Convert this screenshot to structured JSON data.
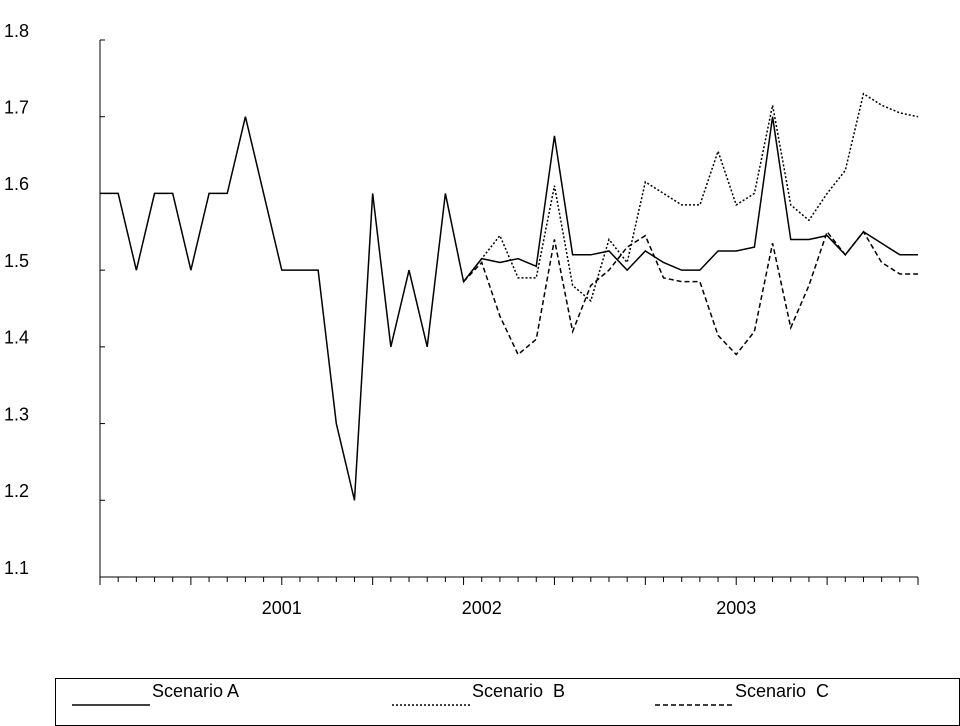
{
  "chart_data": {
    "type": "line",
    "categories": [
      null,
      null,
      null,
      null,
      null,
      null,
      null,
      null,
      null,
      null,
      "2001",
      null,
      null,
      null,
      null,
      null,
      null,
      null,
      null,
      null,
      null,
      "2002",
      null,
      null,
      null,
      null,
      null,
      null,
      null,
      null,
      null,
      null,
      null,
      null,
      null,
      "2003",
      null,
      null,
      null,
      null,
      null,
      null,
      null,
      null,
      null,
      null
    ],
    "series": [
      {
        "name": "Scenario A",
        "color": "#000000",
        "style": "solid",
        "values": [
          1.6,
          1.6,
          1.5,
          1.6,
          1.6,
          1.5,
          1.6,
          1.6,
          1.7,
          1.6,
          1.5,
          1.5,
          1.5,
          1.3,
          1.2,
          1.6,
          1.4,
          1.5,
          1.4,
          1.6,
          1.485,
          1.515,
          1.51,
          1.515,
          1.505,
          1.675,
          1.52,
          1.52,
          1.525,
          1.5,
          1.525,
          1.51,
          1.5,
          1.5,
          1.525,
          1.525,
          1.53,
          1.7,
          1.54,
          1.54,
          1.545,
          1.52,
          1.55,
          1.535,
          1.52,
          1.52
        ]
      },
      {
        "name": "Scenario  B",
        "color": "#000000",
        "style": "dotted",
        "values": [
          null,
          null,
          null,
          null,
          null,
          null,
          null,
          null,
          null,
          null,
          null,
          null,
          null,
          null,
          null,
          null,
          null,
          null,
          null,
          null,
          1.485,
          1.515,
          1.545,
          1.49,
          1.49,
          1.61,
          1.48,
          1.46,
          1.54,
          1.51,
          1.615,
          1.6,
          1.585,
          1.585,
          1.655,
          1.585,
          1.6,
          1.715,
          1.585,
          1.565,
          1.6,
          1.63,
          1.73,
          1.715,
          1.705,
          1.7
        ]
      },
      {
        "name": "Scenario  C",
        "color": "#000000",
        "style": "dashed",
        "values": [
          null,
          null,
          null,
          null,
          null,
          null,
          null,
          null,
          null,
          null,
          null,
          null,
          null,
          null,
          null,
          null,
          null,
          null,
          null,
          null,
          1.485,
          1.51,
          1.44,
          1.39,
          1.41,
          1.54,
          1.42,
          1.48,
          1.5,
          1.53,
          1.545,
          1.49,
          1.485,
          1.485,
          1.415,
          1.39,
          1.42,
          1.535,
          1.425,
          1.48,
          1.55,
          1.52,
          1.55,
          1.51,
          1.495,
          1.495
        ]
      }
    ],
    "ylim": [
      1.1,
      1.8
    ],
    "yticks": [
      {
        "value": 1.1,
        "label": "1.1"
      },
      {
        "value": 1.2,
        "label": "1.2"
      },
      {
        "value": 1.3,
        "label": "1.3"
      },
      {
        "value": 1.4,
        "label": "1.4"
      },
      {
        "value": 1.5,
        "label": "1.5"
      },
      {
        "value": 1.6,
        "label": "1.6"
      },
      {
        "value": 1.7,
        "label": "1.7"
      },
      {
        "value": 1.8,
        "label": "1.8"
      }
    ],
    "legend": "bottom"
  }
}
